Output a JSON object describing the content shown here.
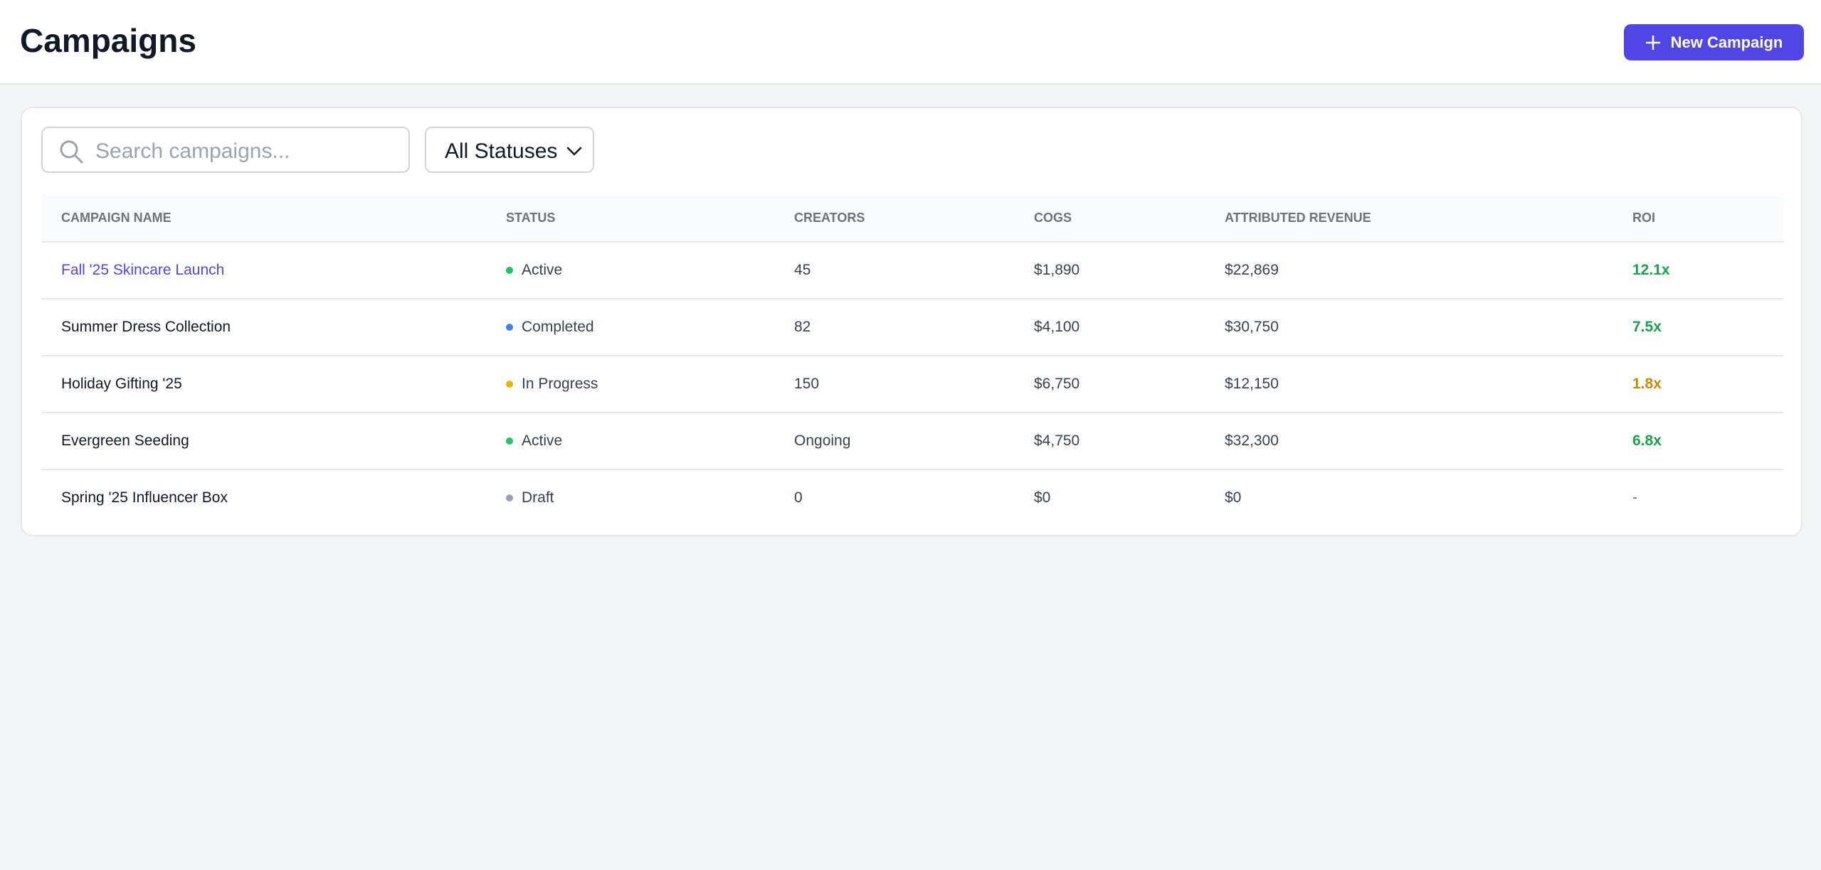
{
  "header": {
    "title": "Campaigns",
    "button": "New Campaign"
  },
  "search": {
    "placeholder": "Search campaigns..."
  },
  "filter": {
    "label": "All Statuses"
  },
  "table": {
    "columns": [
      "CAMPAIGN NAME",
      "STATUS",
      "CREATORS",
      "COGS",
      "ATTRIBUTED REVENUE",
      "ROI"
    ],
    "rows": [
      [
        "Fall '25 Skincare Launch",
        "Active",
        "45",
        "$1,890",
        "$22,869",
        "12.1x"
      ],
      [
        "Summer Dress Collection",
        "Completed",
        "82",
        "$4,100",
        "$30,750",
        "7.5x"
      ],
      [
        "Holiday Gifting '25",
        "In Progress",
        "150",
        "$6,750",
        "$12,150",
        "1.8x"
      ],
      [
        "Evergreen Seeding",
        "Active",
        "Ongoing",
        "$4,750",
        "$32,300",
        "6.8x"
      ],
      [
        "Spring '25 Influencer Box",
        "Draft",
        "0",
        "$0",
        "$0",
        "-"
      ]
    ]
  }
}
